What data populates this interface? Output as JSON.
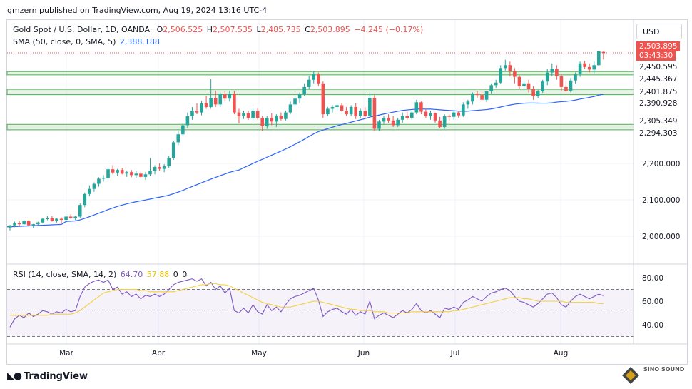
{
  "header": {
    "published": "gmzern published on TradingView.com, Aug 19, 2024 13:16 UTC-4"
  },
  "legend": {
    "symbol": "Gold Spot / U.S. Dollar, 1D, OANDA",
    "open_label": "O",
    "open": "2,506.525",
    "high_label": "H",
    "high": "2,507.535",
    "low_label": "L",
    "low": "2,485.735",
    "close_label": "C",
    "close": "2,503.895",
    "change": "−4.245 (−0.17%)",
    "sma_label": "SMA (50, close, 0, SMA, 5)",
    "sma_value": "2,388.188",
    "rsi_label": "RSI (14, close, SMA, 14, 2)",
    "rsi_value": "64.70",
    "rsi_sma_value": "57.88",
    "rsi_extra1": "0",
    "rsi_extra2": "0"
  },
  "currency_button": "USD",
  "price_tags": {
    "last": "2,503.895",
    "countdown": "03:43:30",
    "levels": [
      "2,450.595",
      "2,445.367",
      "2,401.875",
      "2,390.928",
      "2,305.349",
      "2,294.303"
    ]
  },
  "footer": {
    "brand": "TradingView",
    "watermark": "SINO SOUND"
  },
  "colors": {
    "up": "#26a69a",
    "down": "#ef5350",
    "sma": "#2962ff",
    "rsi": "#7e57c2",
    "rsi_sma": "#f4d03f",
    "zone": "#4caf50"
  },
  "chart_data": [
    {
      "type": "candlestick",
      "title": "Gold Spot / U.S. Dollar, 1D, OANDA",
      "x_ticks": [
        "Mar",
        "Apr",
        "May",
        "Jun",
        "Jul",
        "Aug"
      ],
      "y_ticks": [
        "2,000.000",
        "2,100.000",
        "2,200.000"
      ],
      "ylim": [
        1960,
        2520
      ],
      "grid": true,
      "support_resistance_zones": [
        [
          2445.367,
          2450.595
        ],
        [
          2390.928,
          2401.875
        ],
        [
          2294.303,
          2305.349
        ]
      ],
      "candles": [
        [
          2024,
          2031,
          2016,
          2030
        ],
        [
          2030,
          2040,
          2025,
          2036
        ],
        [
          2036,
          2042,
          2028,
          2033
        ],
        [
          2033,
          2045,
          2030,
          2042
        ],
        [
          2042,
          2044,
          2028,
          2030
        ],
        [
          2030,
          2034,
          2022,
          2033
        ],
        [
          2033,
          2040,
          2030,
          2038
        ],
        [
          2038,
          2050,
          2035,
          2048
        ],
        [
          2048,
          2055,
          2044,
          2049
        ],
        [
          2049,
          2055,
          2040,
          2043
        ],
        [
          2043,
          2050,
          2038,
          2048
        ],
        [
          2048,
          2052,
          2036,
          2045
        ],
        [
          2045,
          2058,
          2042,
          2054
        ],
        [
          2054,
          2060,
          2048,
          2050
        ],
        [
          2050,
          2056,
          2044,
          2054
        ],
        [
          2054,
          2090,
          2050,
          2086
        ],
        [
          2086,
          2120,
          2080,
          2116
        ],
        [
          2116,
          2140,
          2110,
          2130
        ],
        [
          2130,
          2148,
          2122,
          2144
        ],
        [
          2144,
          2162,
          2136,
          2158
        ],
        [
          2158,
          2168,
          2150,
          2160
        ],
        [
          2160,
          2190,
          2154,
          2184
        ],
        [
          2184,
          2195,
          2170,
          2175
        ],
        [
          2175,
          2185,
          2165,
          2182
        ],
        [
          2182,
          2188,
          2170,
          2172
        ],
        [
          2172,
          2180,
          2163,
          2176
        ],
        [
          2176,
          2182,
          2162,
          2168
        ],
        [
          2168,
          2180,
          2160,
          2172
        ],
        [
          2172,
          2178,
          2158,
          2163
        ],
        [
          2163,
          2176,
          2155,
          2170
        ],
        [
          2170,
          2215,
          2165,
          2180
        ],
        [
          2180,
          2195,
          2170,
          2190
        ],
        [
          2190,
          2200,
          2180,
          2185
        ],
        [
          2185,
          2198,
          2176,
          2192
        ],
        [
          2192,
          2220,
          2188,
          2215
        ],
        [
          2215,
          2262,
          2210,
          2258
        ],
        [
          2258,
          2290,
          2250,
          2280
        ],
        [
          2280,
          2312,
          2275,
          2305
        ],
        [
          2305,
          2340,
          2298,
          2330
        ],
        [
          2330,
          2355,
          2320,
          2345
        ],
        [
          2345,
          2365,
          2335,
          2340
        ],
        [
          2340,
          2372,
          2332,
          2365
        ],
        [
          2365,
          2385,
          2350,
          2355
        ],
        [
          2355,
          2432,
          2350,
          2380
        ],
        [
          2380,
          2400,
          2355,
          2362
        ],
        [
          2362,
          2395,
          2355,
          2390
        ],
        [
          2390,
          2398,
          2370,
          2378
        ],
        [
          2378,
          2400,
          2370,
          2392
        ],
        [
          2392,
          2400,
          2335,
          2340
        ],
        [
          2340,
          2350,
          2310,
          2330
        ],
        [
          2330,
          2345,
          2322,
          2338
        ],
        [
          2338,
          2345,
          2320,
          2325
        ],
        [
          2325,
          2352,
          2318,
          2345
        ],
        [
          2345,
          2352,
          2320,
          2325
        ],
        [
          2325,
          2330,
          2290,
          2302
        ],
        [
          2302,
          2330,
          2295,
          2325
        ],
        [
          2325,
          2338,
          2305,
          2315
        ],
        [
          2315,
          2335,
          2300,
          2330
        ],
        [
          2330,
          2340,
          2318,
          2322
        ],
        [
          2322,
          2345,
          2318,
          2340
        ],
        [
          2340,
          2370,
          2335,
          2362
        ],
        [
          2362,
          2385,
          2355,
          2378
        ],
        [
          2378,
          2395,
          2365,
          2390
        ],
        [
          2390,
          2420,
          2385,
          2410
        ],
        [
          2410,
          2440,
          2405,
          2430
        ],
        [
          2430,
          2455,
          2420,
          2445
        ],
        [
          2445,
          2450,
          2412,
          2420
        ],
        [
          2420,
          2425,
          2325,
          2335
        ],
        [
          2335,
          2355,
          2330,
          2350
        ],
        [
          2350,
          2360,
          2340,
          2355
        ],
        [
          2355,
          2365,
          2345,
          2360
        ],
        [
          2360,
          2366,
          2342,
          2345
        ],
        [
          2345,
          2355,
          2330,
          2335
        ],
        [
          2335,
          2360,
          2330,
          2355
        ],
        [
          2355,
          2365,
          2322,
          2330
        ],
        [
          2330,
          2350,
          2325,
          2345
        ],
        [
          2345,
          2355,
          2325,
          2330
        ],
        [
          2330,
          2395,
          2325,
          2380
        ],
        [
          2380,
          2388,
          2290,
          2295
        ],
        [
          2295,
          2320,
          2290,
          2315
        ],
        [
          2315,
          2330,
          2308,
          2325
        ],
        [
          2325,
          2335,
          2312,
          2318
        ],
        [
          2318,
          2330,
          2300,
          2305
        ],
        [
          2305,
          2325,
          2300,
          2320
        ],
        [
          2320,
          2340,
          2312,
          2330
        ],
        [
          2330,
          2342,
          2320,
          2325
        ],
        [
          2325,
          2345,
          2320,
          2340
        ],
        [
          2340,
          2375,
          2335,
          2368
        ],
        [
          2368,
          2370,
          2335,
          2342
        ],
        [
          2342,
          2350,
          2325,
          2330
        ],
        [
          2330,
          2345,
          2320,
          2338
        ],
        [
          2338,
          2340,
          2312,
          2318
        ],
        [
          2318,
          2328,
          2296,
          2300
        ],
        [
          2300,
          2335,
          2295,
          2330
        ],
        [
          2330,
          2335,
          2318,
          2328
        ],
        [
          2328,
          2345,
          2320,
          2340
        ],
        [
          2340,
          2345,
          2325,
          2332
        ],
        [
          2332,
          2368,
          2328,
          2362
        ],
        [
          2362,
          2375,
          2350,
          2370
        ],
        [
          2370,
          2395,
          2362,
          2392
        ],
        [
          2392,
          2400,
          2380,
          2388
        ],
        [
          2388,
          2398,
          2372,
          2375
        ],
        [
          2375,
          2400,
          2368,
          2398
        ],
        [
          2398,
          2420,
          2392,
          2415
        ],
        [
          2415,
          2430,
          2408,
          2422
        ],
        [
          2422,
          2470,
          2418,
          2462
        ],
        [
          2462,
          2485,
          2455,
          2470
        ],
        [
          2470,
          2480,
          2440,
          2455
        ],
        [
          2455,
          2462,
          2420,
          2438
        ],
        [
          2438,
          2442,
          2405,
          2412
        ],
        [
          2412,
          2428,
          2400,
          2420
        ],
        [
          2420,
          2430,
          2395,
          2405
        ],
        [
          2405,
          2412,
          2375,
          2385
        ],
        [
          2385,
          2402,
          2380,
          2398
        ],
        [
          2398,
          2430,
          2394,
          2425
        ],
        [
          2425,
          2460,
          2415,
          2450
        ],
        [
          2450,
          2475,
          2440,
          2460
        ],
        [
          2460,
          2470,
          2430,
          2440
        ],
        [
          2440,
          2445,
          2400,
          2410
        ],
        [
          2410,
          2425,
          2395,
          2400
        ],
        [
          2400,
          2435,
          2395,
          2428
        ],
        [
          2428,
          2450,
          2420,
          2445
        ],
        [
          2445,
          2480,
          2438,
          2475
        ],
        [
          2475,
          2482,
          2460,
          2465
        ],
        [
          2465,
          2475,
          2450,
          2458
        ],
        [
          2458,
          2480,
          2448,
          2470
        ],
        [
          2470,
          2510,
          2468,
          2508
        ],
        [
          2506.525,
          2507.535,
          2485.735,
          2503.895
        ]
      ]
    },
    {
      "type": "line",
      "title": "RSI (14, close, SMA, 14, 2)",
      "y_ticks": [
        "40.00",
        "60.00",
        "80.00"
      ],
      "ylim": [
        30,
        85
      ],
      "bands": [
        30,
        50,
        70
      ],
      "series": [
        {
          "name": "RSI",
          "values": [
            38,
            45,
            48,
            46,
            50,
            47,
            49,
            52,
            51,
            49,
            51,
            50,
            53,
            51,
            52,
            64,
            72,
            75,
            77,
            78,
            76,
            78,
            70,
            72,
            66,
            68,
            64,
            66,
            62,
            65,
            64,
            66,
            64,
            66,
            70,
            74,
            76,
            77,
            78,
            79,
            77,
            79,
            73,
            76,
            70,
            73,
            67,
            71,
            52,
            50,
            54,
            50,
            57,
            51,
            49,
            57,
            52,
            55,
            51,
            57,
            62,
            64,
            65,
            67,
            69,
            71,
            61,
            47,
            51,
            53,
            54,
            51,
            49,
            53,
            48,
            51,
            49,
            60,
            45,
            48,
            50,
            48,
            46,
            49,
            52,
            50,
            53,
            58,
            52,
            50,
            52,
            49,
            46,
            54,
            53,
            55,
            53,
            59,
            61,
            64,
            62,
            60,
            64,
            67,
            68,
            70,
            71,
            69,
            64,
            60,
            59,
            57,
            55,
            58,
            62,
            66,
            67,
            63,
            57,
            55,
            60,
            64,
            66,
            64,
            62,
            64,
            66,
            64.7
          ]
        },
        {
          "name": "SMA",
          "values": [
            48,
            48,
            48,
            48,
            48,
            48,
            48,
            48,
            48,
            49,
            49,
            49,
            49,
            49,
            50,
            52,
            55,
            58,
            61,
            64,
            67,
            68,
            69,
            70,
            70,
            70,
            70,
            70,
            69,
            69,
            68,
            68,
            68,
            68,
            68,
            68,
            69,
            70,
            71,
            72,
            73,
            74,
            74,
            75,
            75,
            74,
            74,
            73,
            71,
            69,
            67,
            65,
            63,
            61,
            59,
            58,
            57,
            56,
            55,
            55,
            55,
            56,
            57,
            58,
            59,
            60,
            60,
            59,
            58,
            57,
            56,
            55,
            54,
            53,
            53,
            52,
            52,
            52,
            51,
            51,
            51,
            50,
            50,
            50,
            50,
            50,
            51,
            51,
            51,
            51,
            51,
            51,
            51,
            51,
            51,
            52,
            52,
            53,
            54,
            55,
            56,
            57,
            58,
            59,
            60,
            61,
            62,
            63,
            63,
            63,
            62,
            62,
            61,
            60,
            60,
            60,
            60,
            60,
            60,
            59,
            59,
            59,
            59,
            59,
            59,
            59,
            58,
            57.88
          ]
        }
      ]
    }
  ]
}
